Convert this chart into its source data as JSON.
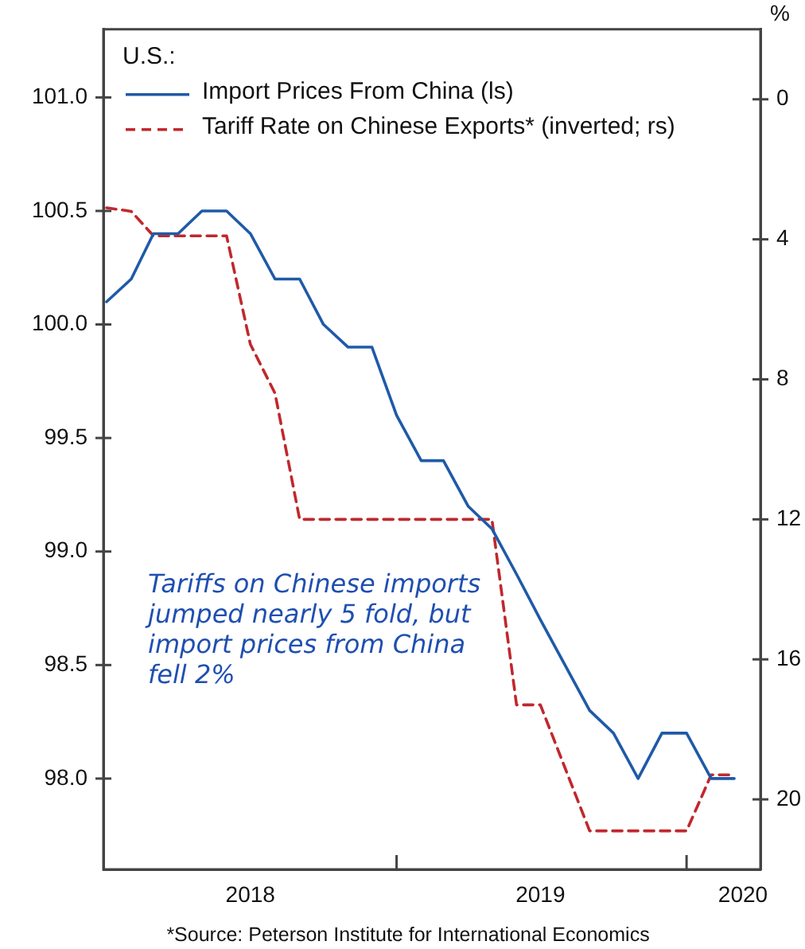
{
  "chart_data": {
    "type": "line",
    "x": [
      "2018-01",
      "2018-02",
      "2018-03",
      "2018-04",
      "2018-05",
      "2018-06",
      "2018-07",
      "2018-08",
      "2018-09",
      "2018-10",
      "2018-11",
      "2018-12",
      "2019-01",
      "2019-02",
      "2019-03",
      "2019-04",
      "2019-05",
      "2019-06",
      "2019-07",
      "2019-08",
      "2019-09",
      "2019-10",
      "2019-11",
      "2019-12",
      "2020-01",
      "2020-02",
      "2020-03"
    ],
    "series": [
      {
        "name": "Import Prices From China (ls)",
        "color": "#1f5aa8",
        "line_style": "solid",
        "values": [
          100.1,
          100.2,
          100.4,
          100.4,
          100.5,
          100.5,
          100.4,
          100.2,
          100.2,
          100.0,
          99.9,
          99.9,
          99.6,
          99.4,
          99.4,
          99.2,
          99.1,
          98.9,
          98.7,
          98.5,
          98.3,
          98.2,
          98.0,
          98.2,
          98.2,
          98.0,
          98.0
        ]
      },
      {
        "name": "Tariff Rate on Chinese Exports* (inverted; rs)",
        "color": "#c0282d",
        "line_style": "dashed",
        "axis": "y2",
        "values": [
          3.1,
          3.2,
          3.9,
          3.9,
          3.9,
          3.9,
          7.0,
          8.4,
          12.0,
          12.0,
          12.0,
          12.0,
          12.0,
          12.0,
          12.0,
          12.0,
          12.0,
          17.3,
          17.3,
          19.1,
          20.9,
          20.9,
          20.9,
          20.9,
          20.9,
          19.3,
          19.3
        ]
      }
    ],
    "legend": "top left",
    "legend_title": "U.S.:",
    "y2label": "%",
    "xlim": [
      "2017-12-28",
      "2020-04-03"
    ],
    "xticks": [
      {
        "value": "2018-07",
        "label": "2018"
      },
      {
        "value": "2019",
        "label": null
      },
      {
        "value": "2019-07",
        "label": "2019"
      },
      {
        "value": "2020",
        "label": null
      },
      {
        "value": "2020-03-12",
        "label": "2020"
      }
    ],
    "ylim": [
      97.6,
      101.3
    ],
    "yticks": [
      {
        "value": 98.0,
        "label": "98.0"
      },
      {
        "value": 98.5,
        "label": "98.5"
      },
      {
        "value": 99.0,
        "label": "99.0"
      },
      {
        "value": 99.5,
        "label": "99.5"
      },
      {
        "value": 100.0,
        "label": "100.0"
      },
      {
        "value": 100.5,
        "label": "100.5"
      },
      {
        "value": 101.0,
        "label": "101.0"
      }
    ],
    "y2lim": [
      22,
      -2
    ],
    "y2ticks": [
      0,
      4,
      8,
      12,
      16,
      20
    ],
    "grid": false,
    "marker": "none",
    "annotations": [
      "Tariffs on Chinese imports jumped nearly 5 fold, but import prices from China fell 2%",
      "*Source: Peterson Institute for International Economics"
    ]
  }
}
